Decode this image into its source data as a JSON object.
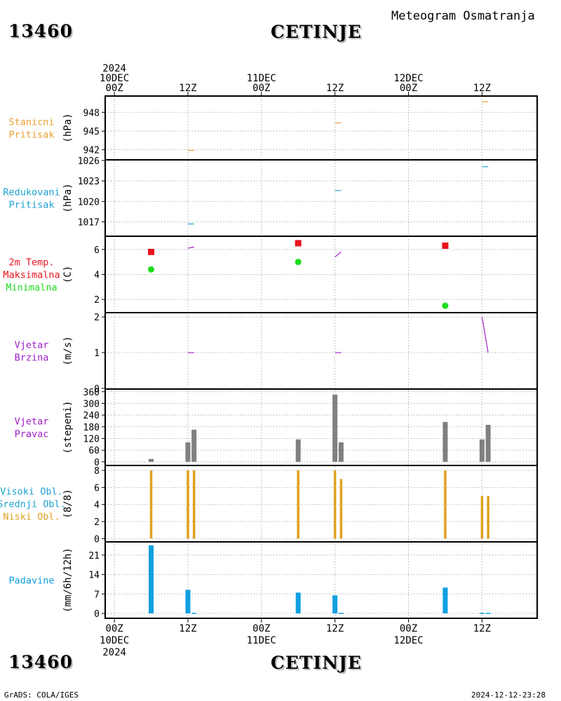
{
  "header": {
    "station_id": "13460",
    "station_name": "CETINJE",
    "subtitle": "Meteogram Osmatranja"
  },
  "footer": {
    "station_id": "13460",
    "station_name": "CETINJE",
    "credit": "GrADS: COLA/IGES",
    "timestamp": "2024-12-12-23:28"
  },
  "colors": {
    "pressure": "#e8a030",
    "reduced": "#1fa0d0",
    "tmax": "#e8141e",
    "tmin": "#1edc1e",
    "wind": "#a020c8",
    "bars": "#808080",
    "clouds": "#e0a020",
    "precip": "#10a0e0"
  },
  "chart_data": {
    "type": "meteogram",
    "x_axis": {
      "top_ticks": [
        {
          "h": 0,
          "lines": [
            "2024",
            "10DEC",
            "00Z"
          ]
        },
        {
          "h": 12,
          "lines": [
            "12Z"
          ]
        },
        {
          "h": 24,
          "lines": [
            "11DEC",
            "00Z"
          ]
        },
        {
          "h": 36,
          "lines": [
            "12Z"
          ]
        },
        {
          "h": 48,
          "lines": [
            "12DEC",
            "00Z"
          ]
        },
        {
          "h": 60,
          "lines": [
            "12Z"
          ]
        }
      ],
      "bottom_ticks": [
        {
          "h": 0,
          "lines": [
            "00Z",
            "10DEC",
            "2024"
          ]
        },
        {
          "h": 12,
          "lines": [
            "12Z"
          ]
        },
        {
          "h": 24,
          "lines": [
            "00Z",
            "11DEC"
          ]
        },
        {
          "h": 36,
          "lines": [
            "12Z"
          ]
        },
        {
          "h": 48,
          "lines": [
            "00Z",
            "12DEC"
          ]
        },
        {
          "h": 60,
          "lines": [
            "12Z"
          ]
        }
      ],
      "range_hours": [
        -1.5,
        69
      ]
    },
    "panels": [
      {
        "id": "station-pressure",
        "labels": [
          "Stanicni",
          "Pritisak"
        ],
        "label_color": "#e8a030",
        "unit": "(hPa)",
        "ylim": [
          940.5,
          950.5
        ],
        "yticks": [
          942,
          945,
          948
        ],
        "segments": [
          {
            "x": [
              12,
              13
            ],
            "y": [
              941.9,
              941.9
            ],
            "color": "#e8a030"
          },
          {
            "x": [
              36,
              37
            ],
            "y": [
              946.3,
              946.3
            ],
            "color": "#e8a030"
          },
          {
            "x": [
              60,
              61
            ],
            "y": [
              949.7,
              949.7
            ],
            "color": "#e8a030"
          }
        ]
      },
      {
        "id": "reduced-pressure",
        "labels": [
          "Redukovani",
          "Pritisak"
        ],
        "label_color": "#1fa0d0",
        "unit": "(hPa)",
        "ylim": [
          1015,
          1026
        ],
        "yticks": [
          1017,
          1020,
          1023,
          1026
        ],
        "segments": [
          {
            "x": [
              12,
              13
            ],
            "y": [
              1016.7,
              1016.7
            ],
            "color": "#1fa0d0"
          },
          {
            "x": [
              36,
              37
            ],
            "y": [
              1021.6,
              1021.6
            ],
            "color": "#1fa0d0"
          },
          {
            "x": [
              60,
              61
            ],
            "y": [
              1025.1,
              1025.1
            ],
            "color": "#1fa0d0"
          }
        ]
      },
      {
        "id": "temperature",
        "labels": [
          "2m Temp.",
          "Maksimalna",
          "Minimalna"
        ],
        "label_colors": [
          "#e8141e",
          "#e8141e",
          "#1edc1e"
        ],
        "unit": "(C)",
        "ylim": [
          1,
          7
        ],
        "yticks": [
          2,
          4,
          6
        ],
        "tmax": [
          {
            "x": 6,
            "y": 5.8
          },
          {
            "x": 30,
            "y": 6.5
          },
          {
            "x": 54,
            "y": 6.3
          }
        ],
        "tmin": [
          {
            "x": 6,
            "y": 4.4
          },
          {
            "x": 30,
            "y": 5.0
          },
          {
            "x": 54,
            "y": 1.5
          }
        ],
        "segments": [
          {
            "x": [
              12,
              13
            ],
            "y": [
              6.1,
              6.2
            ],
            "color": "#a020c8"
          },
          {
            "x": [
              36,
              37
            ],
            "y": [
              5.4,
              5.8
            ],
            "color": "#a020c8"
          }
        ]
      },
      {
        "id": "wind-speed",
        "labels": [
          "Vjetar",
          "Brzina"
        ],
        "label_color": "#a020c8",
        "unit": "(m/s)",
        "ylim": [
          0,
          2.1
        ],
        "yticks": [
          0,
          1,
          2
        ],
        "segments": [
          {
            "x": [
              12,
              13
            ],
            "y": [
              1,
              1
            ],
            "color": "#a020c8"
          },
          {
            "x": [
              36,
              37
            ],
            "y": [
              1,
              1
            ],
            "color": "#a020c8"
          },
          {
            "x": [
              60,
              61
            ],
            "y": [
              2,
              1
            ],
            "color": "#a020c8"
          }
        ]
      },
      {
        "id": "wind-direction",
        "labels": [
          "Vjetar",
          "Pravac"
        ],
        "label_color": "#a020c8",
        "unit": "(stepeni)",
        "ylim": [
          -15,
          370
        ],
        "yticks": [
          0,
          60,
          120,
          180,
          240,
          300,
          360
        ],
        "bars": [
          {
            "x": 6,
            "v": 15,
            "color": "#808080"
          },
          {
            "x": 12,
            "v": 100,
            "color": "#808080"
          },
          {
            "x": 13,
            "v": 165,
            "color": "#808080"
          },
          {
            "x": 30,
            "v": 115,
            "color": "#808080"
          },
          {
            "x": 36,
            "v": 345,
            "color": "#808080"
          },
          {
            "x": 37,
            "v": 100,
            "color": "#808080"
          },
          {
            "x": 54,
            "v": 205,
            "color": "#808080"
          },
          {
            "x": 60,
            "v": 115,
            "color": "#808080"
          },
          {
            "x": 61,
            "v": 190,
            "color": "#808080"
          }
        ],
        "bar_width_hours": 0.8
      },
      {
        "id": "cloud-cover",
        "labels": [
          "Visoki Obl.",
          "Srednji Obl.",
          "Niski Obl."
        ],
        "label_colors": [
          "#1fa0d0",
          "#1fa0d0",
          "#e0a020"
        ],
        "unit": "(8/8)",
        "ylim": [
          -0.3,
          8.5
        ],
        "yticks": [
          0,
          2,
          4,
          6,
          8
        ],
        "bars": [
          {
            "x": 6,
            "v": 8,
            "color": "#e0a020"
          },
          {
            "x": 12,
            "v": 8,
            "color": "#e0a020"
          },
          {
            "x": 13,
            "v": 8,
            "color": "#e0a020"
          },
          {
            "x": 30,
            "v": 8,
            "color": "#e0a020"
          },
          {
            "x": 36,
            "v": 8,
            "color": "#e0a020"
          },
          {
            "x": 37,
            "v": 7,
            "color": "#e0a020"
          },
          {
            "x": 54,
            "v": 8,
            "color": "#e0a020"
          },
          {
            "x": 60,
            "v": 5,
            "color": "#e0a020"
          },
          {
            "x": 61,
            "v": 5,
            "color": "#e0a020"
          }
        ],
        "bar_width_hours": 0.4
      },
      {
        "id": "precipitation",
        "labels": [
          "Padavine"
        ],
        "label_color": "#10a0e0",
        "unit": "(mm/6h/12h)",
        "ylim": [
          -1.5,
          25.5
        ],
        "yticks": [
          0,
          7,
          14,
          21
        ],
        "bars": [
          {
            "x": 6,
            "v": 24.5,
            "color": "#10a0e0"
          },
          {
            "x": 12,
            "v": 8.5,
            "color": "#10a0e0"
          },
          {
            "x": 13,
            "v": 0.2,
            "color": "#10a0e0"
          },
          {
            "x": 30,
            "v": 7.5,
            "color": "#10a0e0"
          },
          {
            "x": 36,
            "v": 6.5,
            "color": "#10a0e0"
          },
          {
            "x": 37,
            "v": 0.2,
            "color": "#10a0e0"
          },
          {
            "x": 54,
            "v": 9.3,
            "color": "#10a0e0"
          },
          {
            "x": 60,
            "v": 0.2,
            "color": "#10a0e0"
          },
          {
            "x": 61,
            "v": 0.2,
            "color": "#10a0e0"
          }
        ],
        "bar_width_hours": 0.8
      }
    ]
  }
}
